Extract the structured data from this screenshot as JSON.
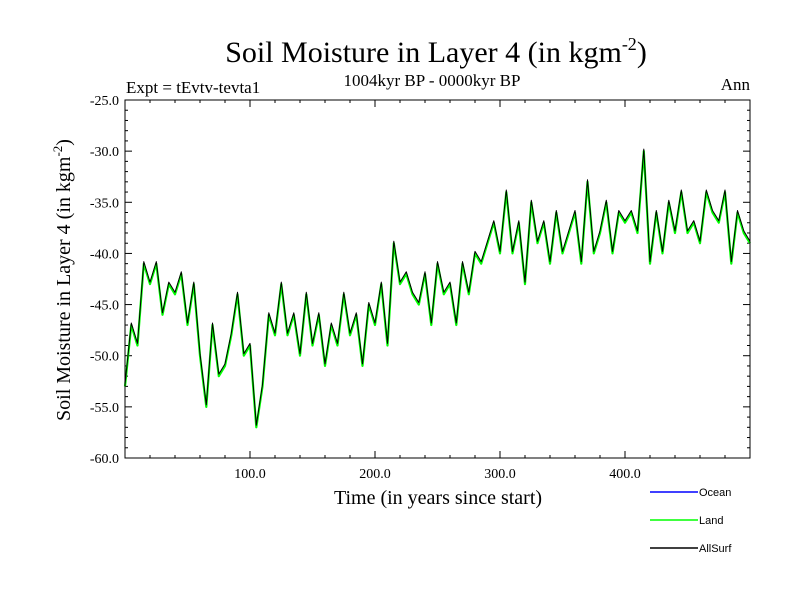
{
  "chart_data": {
    "type": "line",
    "title_main": "Soil Moisture in Layer 4 (in kgm",
    "title_exp": "-2",
    "title_close": ")",
    "subtitle": "1004kyr BP - 0000kyr BP",
    "expt_label": "Expt = tEvtv-tevta1",
    "period_label": "Ann",
    "xlabel": "Time (in years since start)",
    "ylabel_main": "Soil Moisture in Layer 4 (in kgm",
    "ylabel_exp": "-2",
    "ylabel_close": ")",
    "xlim": [
      0,
      500
    ],
    "ylim": [
      -60,
      -25
    ],
    "x_ticks": [
      100,
      200,
      300,
      400
    ],
    "x_tick_labels": [
      "100.0",
      "200.0",
      "300.0",
      "400.0"
    ],
    "y_ticks": [
      -25,
      -30,
      -35,
      -40,
      -45,
      -50,
      -55,
      -60
    ],
    "y_tick_labels": [
      "-25.0",
      "-30.0",
      "-35.0",
      "-40.0",
      "-45.0",
      "-50.0",
      "-55.0",
      "-60.0"
    ],
    "legend_position": "bottom-right",
    "series": [
      {
        "name": "Ocean",
        "color": "#0000ff",
        "values": []
      },
      {
        "name": "Land",
        "color": "#00ff00",
        "x": [
          0,
          5,
          10,
          15,
          20,
          25,
          30,
          35,
          40,
          45,
          50,
          55,
          60,
          65,
          70,
          75,
          80,
          85,
          90,
          95,
          100,
          105,
          110,
          115,
          120,
          125,
          130,
          135,
          140,
          145,
          150,
          155,
          160,
          165,
          170,
          175,
          180,
          185,
          190,
          195,
          200,
          205,
          210,
          215,
          220,
          225,
          230,
          235,
          240,
          245,
          250,
          255,
          260,
          265,
          270,
          275,
          280,
          285,
          290,
          295,
          300,
          305,
          310,
          315,
          320,
          325,
          330,
          335,
          340,
          345,
          350,
          355,
          360,
          365,
          370,
          375,
          380,
          385,
          390,
          395,
          400,
          405,
          410,
          415,
          420,
          425,
          430,
          435,
          440,
          445,
          450,
          455,
          460,
          465,
          470,
          475,
          480,
          485,
          490,
          495,
          500
        ],
        "values": [
          -53,
          -47,
          -49,
          -41,
          -43,
          -41,
          -46,
          -43,
          -44,
          -42,
          -47,
          -43,
          -50,
          -55,
          -47,
          -52,
          -51,
          -48,
          -44,
          -50,
          -49,
          -57,
          -53,
          -46,
          -48,
          -43,
          -48,
          -46,
          -50,
          -44,
          -49,
          -46,
          -51,
          -47,
          -49,
          -44,
          -48,
          -46,
          -51,
          -45,
          -47,
          -43,
          -49,
          -39,
          -43,
          -42,
          -44,
          -45,
          -42,
          -47,
          -41,
          -44,
          -43,
          -47,
          -41,
          -44,
          -40,
          -41,
          -39,
          -37,
          -40,
          -34,
          -40,
          -37,
          -43,
          -35,
          -39,
          -37,
          -41,
          -36,
          -40,
          -38,
          -36,
          -41,
          -33,
          -40,
          -38,
          -35,
          -40,
          -36,
          -37,
          -36,
          -38,
          -30,
          -41,
          -36,
          -40,
          -35,
          -38,
          -34,
          -38,
          -37,
          -39,
          -34,
          -36,
          -37,
          -34,
          -41,
          -36,
          -38,
          -39
        ]
      },
      {
        "name": "AllSurf",
        "color": "#000000",
        "x": [
          0,
          5,
          10,
          15,
          20,
          25,
          30,
          35,
          40,
          45,
          50,
          55,
          60,
          65,
          70,
          75,
          80,
          85,
          90,
          95,
          100,
          105,
          110,
          115,
          120,
          125,
          130,
          135,
          140,
          145,
          150,
          155,
          160,
          165,
          170,
          175,
          180,
          185,
          190,
          195,
          200,
          205,
          210,
          215,
          220,
          225,
          230,
          235,
          240,
          245,
          250,
          255,
          260,
          265,
          270,
          275,
          280,
          285,
          290,
          295,
          300,
          305,
          310,
          315,
          320,
          325,
          330,
          335,
          340,
          345,
          350,
          355,
          360,
          365,
          370,
          375,
          380,
          385,
          390,
          395,
          400,
          405,
          410,
          415,
          420,
          425,
          430,
          435,
          440,
          445,
          450,
          455,
          460,
          465,
          470,
          475,
          480,
          485,
          490,
          495,
          500
        ],
        "values": [
          -52.8,
          -46.8,
          -48.8,
          -40.8,
          -42.8,
          -40.8,
          -45.8,
          -42.8,
          -43.8,
          -41.8,
          -46.8,
          -42.8,
          -49.8,
          -54.8,
          -46.8,
          -51.8,
          -50.8,
          -47.8,
          -43.8,
          -49.8,
          -48.8,
          -56.8,
          -52.8,
          -45.8,
          -47.8,
          -42.8,
          -47.8,
          -45.8,
          -49.8,
          -43.8,
          -48.8,
          -45.8,
          -50.8,
          -46.8,
          -48.8,
          -43.8,
          -47.8,
          -45.8,
          -50.8,
          -44.8,
          -46.8,
          -42.8,
          -48.8,
          -38.8,
          -42.8,
          -41.8,
          -43.8,
          -44.8,
          -41.8,
          -46.8,
          -40.8,
          -43.8,
          -42.8,
          -46.8,
          -40.8,
          -43.8,
          -39.8,
          -40.8,
          -38.8,
          -36.8,
          -39.8,
          -33.8,
          -39.8,
          -36.8,
          -42.8,
          -34.8,
          -38.8,
          -36.8,
          -40.8,
          -35.8,
          -39.8,
          -37.8,
          -35.8,
          -40.8,
          -32.8,
          -39.8,
          -37.8,
          -34.8,
          -39.8,
          -35.8,
          -36.8,
          -35.8,
          -37.8,
          -29.8,
          -40.8,
          -35.8,
          -39.8,
          -34.8,
          -37.8,
          -33.8,
          -37.8,
          -36.8,
          -38.8,
          -33.8,
          -35.8,
          -36.8,
          -33.8,
          -40.8,
          -35.8,
          -37.8,
          -38.8
        ]
      }
    ]
  }
}
